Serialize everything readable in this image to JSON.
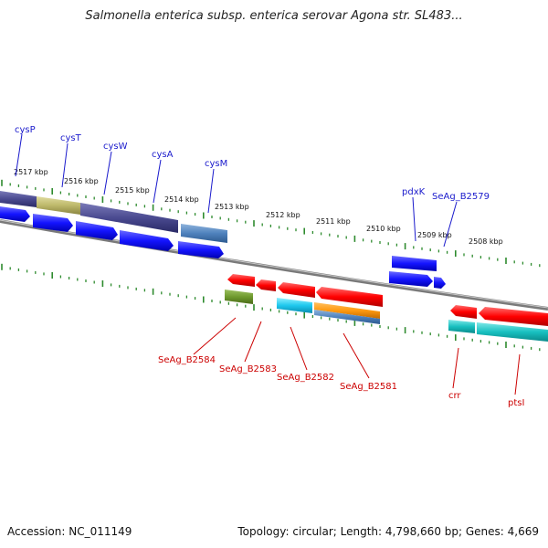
{
  "title": "Salmonella enterica subsp. enterica serovar Agona str. SL483...",
  "footer": {
    "accession": "Accession: NC_011149",
    "summary": "Topology: circular; Length: 4,798,660 bp; Genes: 4,669"
  },
  "colors": {
    "backbone": "#808080",
    "tick": "#2e8b2e",
    "forward_gene": "#1a1aff",
    "reverse_gene": "#ff0000",
    "blue_label": "#1a1acc",
    "red_label": "#cc0000"
  },
  "kbp_labels": [
    "2517 kbp",
    "2516 kbp",
    "2515 kbp",
    "2514 kbp",
    "2513 kbp",
    "2512 kbp",
    "2511 kbp",
    "2510 kbp",
    "2509 kbp",
    "2508 kbp"
  ],
  "forward_gene_labels": [
    "cysP",
    "cysT",
    "cysW",
    "cysA",
    "cysM",
    "pdxK",
    "SeAg_B2579"
  ],
  "reverse_gene_labels": [
    "SeAg_B2584",
    "SeAg_B2583",
    "SeAg_B2582",
    "SeAg_B2581",
    "crr",
    "ptsI"
  ]
}
